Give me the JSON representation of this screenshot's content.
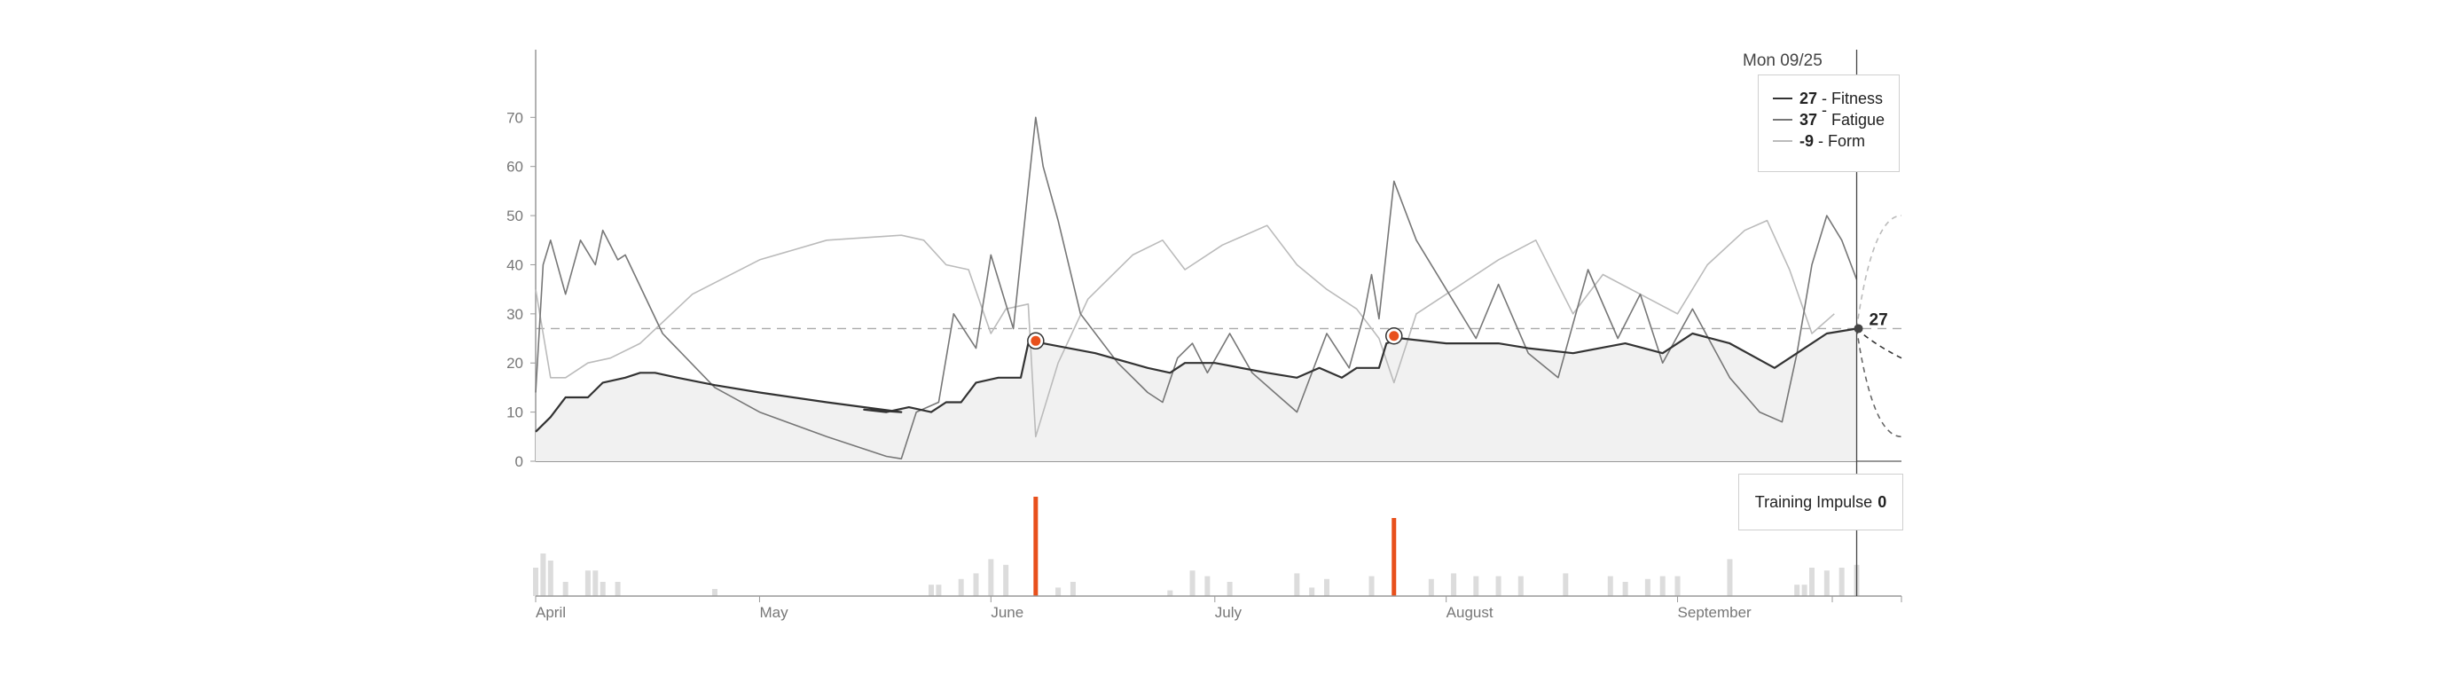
{
  "chart_data": [
    {
      "type": "line",
      "x_domain": [
        "2023-04-01",
        "2023-10-01"
      ],
      "x_ticks": [
        {
          "date": "2023-04-01",
          "label": "April"
        },
        {
          "date": "2023-05-01",
          "label": "May"
        },
        {
          "date": "2023-06-01",
          "label": "June"
        },
        {
          "date": "2023-07-01",
          "label": "July"
        },
        {
          "date": "2023-08-01",
          "label": "August"
        },
        {
          "date": "2023-09-01",
          "label": "September"
        }
      ],
      "ylim": [
        0,
        78
      ],
      "y_ticks": [
        0,
        10,
        20,
        30,
        40,
        50,
        60,
        70
      ],
      "reference_line": 27,
      "selected_date": "2023-09-25",
      "selected_date_label": "Mon 09/25",
      "selected_value_label": "27",
      "series": [
        {
          "name": "Fitness",
          "color": "#333333",
          "points": [
            [
              "2023-04-01",
              6
            ],
            [
              "2023-04-03",
              9
            ],
            [
              "2023-04-05",
              13
            ],
            [
              "2023-04-08",
              13
            ],
            [
              "2023-04-10",
              16
            ],
            [
              "2023-04-13",
              17
            ],
            [
              "2023-04-15",
              18
            ],
            [
              "2023-04-17",
              18
            ],
            [
              "2023-04-20",
              17
            ],
            [
              "2023-04-25",
              15.5
            ],
            [
              "2023-05-01",
              14
            ],
            [
              "2023-05-10",
              12
            ],
            [
              "2023-05-20",
              10
            ],
            [
              "2023-05-15",
              10.5
            ],
            [
              "2023-05-18",
              10
            ],
            [
              "2023-05-21",
              11
            ],
            [
              "2023-05-24",
              10
            ],
            [
              "2023-05-26",
              12
            ],
            [
              "2023-05-28",
              12
            ],
            [
              "2023-05-30",
              16
            ],
            [
              "2023-06-02",
              17
            ],
            [
              "2023-06-05",
              17
            ],
            [
              "2023-06-06",
              24
            ],
            [
              "2023-06-08",
              24
            ],
            [
              "2023-06-15",
              22
            ],
            [
              "2023-06-22",
              19
            ],
            [
              "2023-06-25",
              18
            ],
            [
              "2023-06-27",
              20
            ],
            [
              "2023-07-01",
              20
            ],
            [
              "2023-07-08",
              18
            ],
            [
              "2023-07-12",
              17
            ],
            [
              "2023-07-15",
              19
            ],
            [
              "2023-07-18",
              17
            ],
            [
              "2023-07-20",
              19
            ],
            [
              "2023-07-23",
              19
            ],
            [
              "2023-07-24",
              24
            ],
            [
              "2023-07-26",
              25
            ],
            [
              "2023-08-01",
              24
            ],
            [
              "2023-08-08",
              24
            ],
            [
              "2023-08-12",
              23
            ],
            [
              "2023-08-18",
              22
            ],
            [
              "2023-08-25",
              24
            ],
            [
              "2023-08-30",
              22
            ],
            [
              "2023-09-03",
              26
            ],
            [
              "2023-09-08",
              24
            ],
            [
              "2023-09-14",
              19
            ],
            [
              "2023-09-17",
              22
            ],
            [
              "2023-09-21",
              26
            ],
            [
              "2023-09-25",
              27
            ]
          ]
        },
        {
          "name": "Fatigue",
          "color": "#777777",
          "points": [
            [
              "2023-04-01",
              14
            ],
            [
              "2023-04-02",
              40
            ],
            [
              "2023-04-03",
              45
            ],
            [
              "2023-04-05",
              34
            ],
            [
              "2023-04-07",
              45
            ],
            [
              "2023-04-09",
              40
            ],
            [
              "2023-04-10",
              47
            ],
            [
              "2023-04-12",
              41
            ],
            [
              "2023-04-13",
              42
            ],
            [
              "2023-04-18",
              26
            ],
            [
              "2023-04-25",
              15
            ],
            [
              "2023-05-01",
              10
            ],
            [
              "2023-05-10",
              5
            ],
            [
              "2023-05-18",
              1
            ],
            [
              "2023-05-20",
              0.5
            ],
            [
              "2023-05-22",
              10
            ],
            [
              "2023-05-25",
              12
            ],
            [
              "2023-05-27",
              30
            ],
            [
              "2023-05-30",
              23
            ],
            [
              "2023-06-01",
              42
            ],
            [
              "2023-06-04",
              27
            ],
            [
              "2023-06-07",
              70
            ],
            [
              "2023-06-08",
              60
            ],
            [
              "2023-06-10",
              49
            ],
            [
              "2023-06-13",
              30
            ],
            [
              "2023-06-18",
              20
            ],
            [
              "2023-06-22",
              14
            ],
            [
              "2023-06-24",
              12
            ],
            [
              "2023-06-26",
              21
            ],
            [
              "2023-06-28",
              24
            ],
            [
              "2023-06-30",
              18
            ],
            [
              "2023-07-03",
              26
            ],
            [
              "2023-07-06",
              18
            ],
            [
              "2023-07-09",
              14
            ],
            [
              "2023-07-12",
              10
            ],
            [
              "2023-07-16",
              26
            ],
            [
              "2023-07-19",
              19
            ],
            [
              "2023-07-21",
              30
            ],
            [
              "2023-07-22",
              38
            ],
            [
              "2023-07-23",
              29
            ],
            [
              "2023-07-25",
              57
            ],
            [
              "2023-07-28",
              45
            ],
            [
              "2023-08-01",
              35
            ],
            [
              "2023-08-05",
              25
            ],
            [
              "2023-08-08",
              36
            ],
            [
              "2023-08-12",
              22
            ],
            [
              "2023-08-16",
              17
            ],
            [
              "2023-08-20",
              39
            ],
            [
              "2023-08-24",
              25
            ],
            [
              "2023-08-27",
              34
            ],
            [
              "2023-08-30",
              20
            ],
            [
              "2023-09-03",
              31
            ],
            [
              "2023-09-08",
              17
            ],
            [
              "2023-09-12",
              10
            ],
            [
              "2023-09-15",
              8
            ],
            [
              "2023-09-17",
              22
            ],
            [
              "2023-09-19",
              40
            ],
            [
              "2023-09-21",
              50
            ],
            [
              "2023-09-23",
              45
            ],
            [
              "2023-09-25",
              37
            ]
          ]
        },
        {
          "name": "Form",
          "color": "#bbbbbb",
          "points": [
            [
              "2023-04-01",
              35
            ],
            [
              "2023-04-03",
              17
            ],
            [
              "2023-04-05",
              17
            ],
            [
              "2023-04-08",
              20
            ],
            [
              "2023-04-11",
              21
            ],
            [
              "2023-04-15",
              24
            ],
            [
              "2023-04-22",
              34
            ],
            [
              "2023-05-01",
              41
            ],
            [
              "2023-05-10",
              45
            ],
            [
              "2023-05-20",
              46
            ],
            [
              "2023-05-23",
              45
            ],
            [
              "2023-05-26",
              40
            ],
            [
              "2023-05-29",
              39
            ],
            [
              "2023-06-01",
              26
            ],
            [
              "2023-06-03",
              31
            ],
            [
              "2023-06-06",
              32
            ],
            [
              "2023-06-07",
              5
            ],
            [
              "2023-06-10",
              20
            ],
            [
              "2023-06-14",
              33
            ],
            [
              "2023-06-20",
              42
            ],
            [
              "2023-06-24",
              45
            ],
            [
              "2023-06-27",
              39
            ],
            [
              "2023-07-02",
              44
            ],
            [
              "2023-07-08",
              48
            ],
            [
              "2023-07-12",
              40
            ],
            [
              "2023-07-16",
              35
            ],
            [
              "2023-07-20",
              31
            ],
            [
              "2023-07-23",
              25
            ],
            [
              "2023-07-25",
              16
            ],
            [
              "2023-07-28",
              30
            ],
            [
              "2023-08-02",
              35
            ],
            [
              "2023-08-08",
              41
            ],
            [
              "2023-08-13",
              45
            ],
            [
              "2023-08-18",
              30
            ],
            [
              "2023-08-22",
              38
            ],
            [
              "2023-08-27",
              34
            ],
            [
              "2023-09-01",
              30
            ],
            [
              "2023-09-05",
              40
            ],
            [
              "2023-09-10",
              47
            ],
            [
              "2023-09-13",
              49
            ],
            [
              "2023-09-16",
              39
            ],
            [
              "2023-09-19",
              26
            ],
            [
              "2023-09-22",
              30
            ],
            [
              "2023-09-25",
              -9
            ]
          ]
        }
      ],
      "legend": [
        {
          "value": "27",
          "name": "Fitness",
          "color": "#333333"
        },
        {
          "value": "37",
          "name": "Fatigue",
          "color": "#777777"
        },
        {
          "value": "-9",
          "name": "Form",
          "color": "#bbbbbb"
        }
      ],
      "highlights": [
        {
          "date": "2023-06-07",
          "value": 24.5,
          "color": "#e8501c"
        },
        {
          "date": "2023-07-25",
          "value": 25.5,
          "color": "#e8501c"
        }
      ],
      "projections": [
        {
          "series": "Fitness",
          "points": [
            [
              "2023-09-25",
              27
            ],
            [
              "2023-10-01",
              21
            ]
          ]
        },
        {
          "series": "Fatigue",
          "points": [
            [
              "2023-09-25",
              27
            ],
            [
              "2023-10-01",
              5
            ]
          ]
        },
        {
          "series": "Form",
          "points": [
            [
              "2023-09-25",
              27
            ],
            [
              "2023-10-01",
              50
            ]
          ]
        }
      ]
    },
    {
      "type": "bar",
      "title": "Training Impulse",
      "selected_value": "0",
      "ylim": [
        0,
        70
      ],
      "bars": [
        [
          "2023-04-01",
          20
        ],
        [
          "2023-04-02",
          30
        ],
        [
          "2023-04-03",
          25
        ],
        [
          "2023-04-05",
          10
        ],
        [
          "2023-04-08",
          18
        ],
        [
          "2023-04-09",
          18
        ],
        [
          "2023-04-10",
          10
        ],
        [
          "2023-04-12",
          10
        ],
        [
          "2023-04-25",
          5
        ],
        [
          "2023-05-24",
          8
        ],
        [
          "2023-05-25",
          8
        ],
        [
          "2023-05-28",
          12
        ],
        [
          "2023-05-30",
          16
        ],
        [
          "2023-06-01",
          26
        ],
        [
          "2023-06-03",
          22
        ],
        [
          "2023-06-07",
          70
        ],
        [
          "2023-06-10",
          6
        ],
        [
          "2023-06-12",
          10
        ],
        [
          "2023-06-25",
          4
        ],
        [
          "2023-06-28",
          18
        ],
        [
          "2023-06-30",
          14
        ],
        [
          "2023-07-03",
          10
        ],
        [
          "2023-07-12",
          16
        ],
        [
          "2023-07-14",
          6
        ],
        [
          "2023-07-16",
          12
        ],
        [
          "2023-07-22",
          14
        ],
        [
          "2023-07-25",
          55
        ],
        [
          "2023-07-30",
          12
        ],
        [
          "2023-08-02",
          16
        ],
        [
          "2023-08-05",
          14
        ],
        [
          "2023-08-08",
          14
        ],
        [
          "2023-08-11",
          14
        ],
        [
          "2023-08-17",
          16
        ],
        [
          "2023-08-23",
          14
        ],
        [
          "2023-08-25",
          10
        ],
        [
          "2023-08-28",
          12
        ],
        [
          "2023-08-30",
          14
        ],
        [
          "2023-09-01",
          14
        ],
        [
          "2023-09-08",
          26
        ],
        [
          "2023-09-17",
          8
        ],
        [
          "2023-09-18",
          8
        ],
        [
          "2023-09-19",
          20
        ],
        [
          "2023-09-21",
          18
        ],
        [
          "2023-09-23",
          20
        ],
        [
          "2023-09-25",
          22
        ]
      ]
    }
  ]
}
